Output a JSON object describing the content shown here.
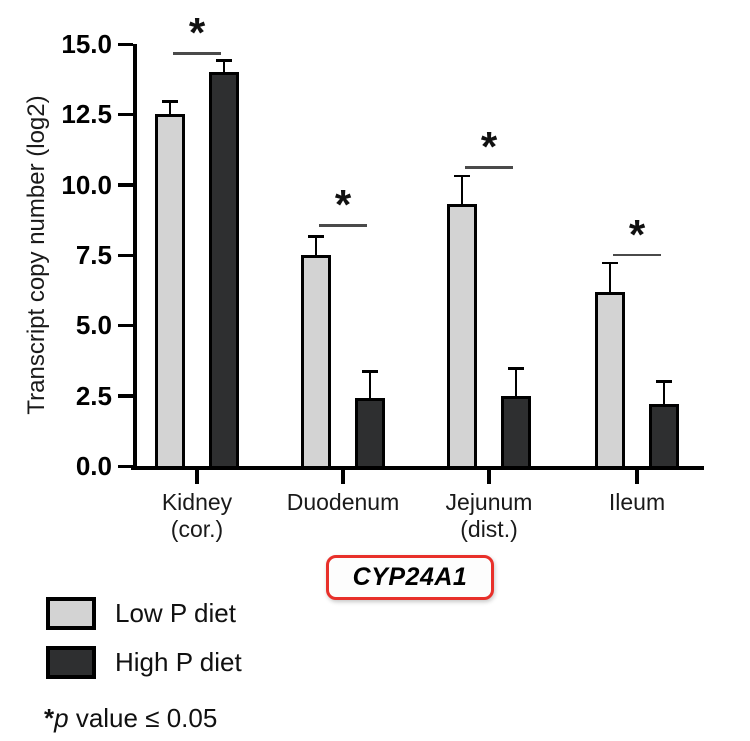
{
  "chart_data": {
    "type": "bar",
    "title": "CYP24A1",
    "ylabel": "Transcript copy number (log2)",
    "ylim": [
      0,
      15
    ],
    "yticks": [
      0,
      2.5,
      5,
      7.5,
      10,
      12.5,
      15
    ],
    "ytick_labels": [
      "0.0",
      "2.5",
      "5.0",
      "7.5",
      "10.0",
      "12.5",
      "15.0"
    ],
    "categories": [
      "Kidney (cor.)",
      "Duodenum",
      "Jejunum (dist.)",
      "Ileum"
    ],
    "category_lines": [
      [
        "Kidney",
        "(cor.)"
      ],
      [
        "Duodenum"
      ],
      [
        "Jejunum",
        "(dist.)"
      ],
      [
        "Ileum"
      ]
    ],
    "series": [
      {
        "name": "Low P diet",
        "color": "#d3d3d3",
        "values": [
          12.5,
          7.5,
          9.3,
          6.2
        ],
        "errors": [
          0.45,
          0.65,
          1.0,
          1.0
        ]
      },
      {
        "name": "High P diet",
        "color": "#2e2f30",
        "values": [
          14.0,
          2.4,
          2.5,
          2.2
        ],
        "errors": [
          0.4,
          0.95,
          0.95,
          0.8
        ]
      }
    ],
    "significance": [
      {
        "group_index": 0,
        "label": "*",
        "line_y": 14.7
      },
      {
        "group_index": 1,
        "label": "*",
        "line_y": 8.6
      },
      {
        "group_index": 2,
        "label": "*",
        "line_y": 10.65
      },
      {
        "group_index": 3,
        "label": "*",
        "line_y": 7.55
      }
    ],
    "legend": {
      "position": "bottom-left",
      "entries": [
        {
          "label": "Low P diet",
          "color": "#d3d3d3"
        },
        {
          "label": "High P diet",
          "color": "#2e2f30"
        }
      ]
    },
    "grid": false
  },
  "gene_box": {
    "label": "CYP24A1",
    "border_color": "#e8302a"
  },
  "footnote": {
    "star": "*",
    "p": "p",
    "rest": " value ≤ 0.05"
  }
}
